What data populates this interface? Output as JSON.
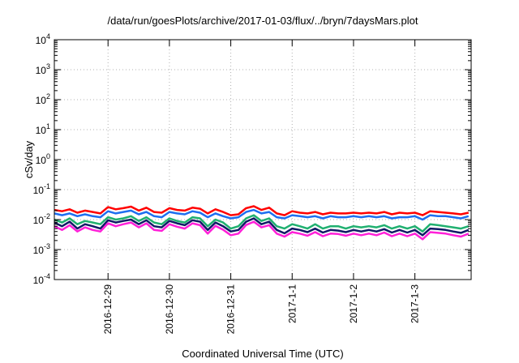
{
  "chart_data": {
    "type": "line",
    "title": "/data/run/goesPlots/archive/2017-01-03/flux/../bryn/7daysMars.plot",
    "xlabel": "Coordinated Universal Time (UTC)",
    "ylabel": "cSv/day",
    "y_scale": "log",
    "ylim": [
      0.0001,
      10000
    ],
    "y_ticks": [
      {
        "value": 0.0001,
        "base": "10",
        "exp": "-4"
      },
      {
        "value": 0.001,
        "base": "10",
        "exp": "-3"
      },
      {
        "value": 0.01,
        "base": "10",
        "exp": "-2"
      },
      {
        "value": 0.1,
        "base": "10",
        "exp": "-1"
      },
      {
        "value": 1,
        "base": "10",
        "exp": "0"
      },
      {
        "value": 10,
        "base": "10",
        "exp": "1"
      },
      {
        "value": 100,
        "base": "10",
        "exp": "2"
      },
      {
        "value": 1000,
        "base": "10",
        "exp": "3"
      },
      {
        "value": 10000,
        "base": "10",
        "exp": "4"
      }
    ],
    "xlim": [
      "2016-12-28T03:00",
      "2017-01-03T22:00"
    ],
    "x_ticks": [
      {
        "value": "2016-12-29T00:00",
        "label": "2016-12-29"
      },
      {
        "value": "2016-12-30T00:00",
        "label": "2016-12-30"
      },
      {
        "value": "2016-12-31T00:00",
        "label": "2016-12-31"
      },
      {
        "value": "2017-01-01T00:00",
        "label": "2017-1-1"
      },
      {
        "value": "2017-01-02T00:00",
        "label": "2017-1-2"
      },
      {
        "value": "2017-01-03T00:00",
        "label": "2017-1-3"
      }
    ],
    "grid": true,
    "x": [
      "2016-12-28T03:00",
      "2016-12-28T06:00",
      "2016-12-28T09:00",
      "2016-12-28T12:00",
      "2016-12-28T15:00",
      "2016-12-28T18:00",
      "2016-12-28T21:00",
      "2016-12-29T00:00",
      "2016-12-29T03:00",
      "2016-12-29T06:00",
      "2016-12-29T09:00",
      "2016-12-29T12:00",
      "2016-12-29T15:00",
      "2016-12-29T18:00",
      "2016-12-29T21:00",
      "2016-12-30T00:00",
      "2016-12-30T03:00",
      "2016-12-30T06:00",
      "2016-12-30T09:00",
      "2016-12-30T12:00",
      "2016-12-30T15:00",
      "2016-12-30T18:00",
      "2016-12-30T21:00",
      "2016-12-31T00:00",
      "2016-12-31T03:00",
      "2016-12-31T06:00",
      "2016-12-31T09:00",
      "2016-12-31T12:00",
      "2016-12-31T15:00",
      "2016-12-31T18:00",
      "2016-12-31T21:00",
      "2017-01-01T00:00",
      "2017-01-01T03:00",
      "2017-01-01T06:00",
      "2017-01-01T09:00",
      "2017-01-01T12:00",
      "2017-01-01T15:00",
      "2017-01-01T18:00",
      "2017-01-01T21:00",
      "2017-01-02T00:00",
      "2017-01-02T03:00",
      "2017-01-02T06:00",
      "2017-01-02T09:00",
      "2017-01-02T12:00",
      "2017-01-02T15:00",
      "2017-01-02T18:00",
      "2017-01-02T21:00",
      "2017-01-03T00:00",
      "2017-01-03T03:00",
      "2017-01-03T06:00",
      "2017-01-03T09:00",
      "2017-01-03T12:00",
      "2017-01-03T15:00",
      "2017-01-03T18:00",
      "2017-01-03T21:00"
    ],
    "series": [
      {
        "color": "#ff0000",
        "values": [
          0.021,
          0.019,
          0.022,
          0.017,
          0.02,
          0.018,
          0.016,
          0.026,
          0.022,
          0.024,
          0.027,
          0.02,
          0.025,
          0.018,
          0.017,
          0.024,
          0.021,
          0.02,
          0.025,
          0.023,
          0.016,
          0.022,
          0.018,
          0.014,
          0.015,
          0.024,
          0.028,
          0.021,
          0.025,
          0.016,
          0.014,
          0.019,
          0.017,
          0.016,
          0.018,
          0.015,
          0.017,
          0.016,
          0.016,
          0.017,
          0.016,
          0.017,
          0.016,
          0.018,
          0.015,
          0.017,
          0.016,
          0.017,
          0.014,
          0.019,
          0.018,
          0.017,
          0.016,
          0.015,
          0.017
        ]
      },
      {
        "color": "#1e6ff0",
        "values": [
          0.016,
          0.014,
          0.016,
          0.013,
          0.015,
          0.013,
          0.012,
          0.019,
          0.016,
          0.018,
          0.02,
          0.015,
          0.018,
          0.013,
          0.012,
          0.018,
          0.016,
          0.015,
          0.019,
          0.017,
          0.012,
          0.016,
          0.013,
          0.011,
          0.012,
          0.018,
          0.021,
          0.016,
          0.018,
          0.012,
          0.011,
          0.014,
          0.013,
          0.012,
          0.013,
          0.011,
          0.013,
          0.012,
          0.012,
          0.013,
          0.012,
          0.013,
          0.012,
          0.013,
          0.011,
          0.012,
          0.012,
          0.013,
          0.01,
          0.014,
          0.013,
          0.013,
          0.012,
          0.011,
          0.013
        ]
      },
      {
        "color": "#20b070",
        "values": [
          0.01,
          0.008,
          0.011,
          0.007,
          0.009,
          0.008,
          0.007,
          0.012,
          0.01,
          0.011,
          0.013,
          0.009,
          0.012,
          0.008,
          0.007,
          0.011,
          0.009,
          0.008,
          0.012,
          0.011,
          0.006,
          0.01,
          0.008,
          0.005,
          0.006,
          0.011,
          0.014,
          0.009,
          0.011,
          0.006,
          0.005,
          0.007,
          0.006,
          0.005,
          0.007,
          0.005,
          0.006,
          0.006,
          0.005,
          0.006,
          0.0055,
          0.006,
          0.0055,
          0.0065,
          0.005,
          0.006,
          0.005,
          0.006,
          0.004,
          0.007,
          0.0065,
          0.006,
          0.0055,
          0.005,
          0.006
        ]
      },
      {
        "color": "#111a66",
        "values": [
          0.008,
          0.006,
          0.0085,
          0.005,
          0.007,
          0.006,
          0.005,
          0.0095,
          0.008,
          0.009,
          0.01,
          0.007,
          0.0095,
          0.006,
          0.0055,
          0.009,
          0.0075,
          0.0065,
          0.0095,
          0.0085,
          0.0045,
          0.008,
          0.006,
          0.004,
          0.0045,
          0.0085,
          0.011,
          0.007,
          0.0085,
          0.0045,
          0.0035,
          0.005,
          0.0045,
          0.0038,
          0.005,
          0.0037,
          0.0045,
          0.0043,
          0.0038,
          0.0045,
          0.004,
          0.0045,
          0.004,
          0.0048,
          0.0037,
          0.0045,
          0.0037,
          0.0045,
          0.003,
          0.005,
          0.0048,
          0.0045,
          0.004,
          0.0036,
          0.0045
        ]
      },
      {
        "color": "#ff20d8",
        "values": [
          0.006,
          0.0045,
          0.0065,
          0.004,
          0.0055,
          0.0045,
          0.004,
          0.0075,
          0.006,
          0.007,
          0.008,
          0.0055,
          0.0075,
          0.0045,
          0.0042,
          0.007,
          0.0058,
          0.005,
          0.0075,
          0.0065,
          0.0034,
          0.0062,
          0.0046,
          0.003,
          0.0034,
          0.0066,
          0.0085,
          0.0055,
          0.0065,
          0.0034,
          0.0027,
          0.0038,
          0.0034,
          0.0029,
          0.0038,
          0.0028,
          0.0034,
          0.0033,
          0.0029,
          0.0034,
          0.003,
          0.0034,
          0.003,
          0.0037,
          0.0028,
          0.0034,
          0.0028,
          0.0034,
          0.0022,
          0.0038,
          0.0036,
          0.0034,
          0.003,
          0.0027,
          0.0034
        ]
      }
    ]
  }
}
